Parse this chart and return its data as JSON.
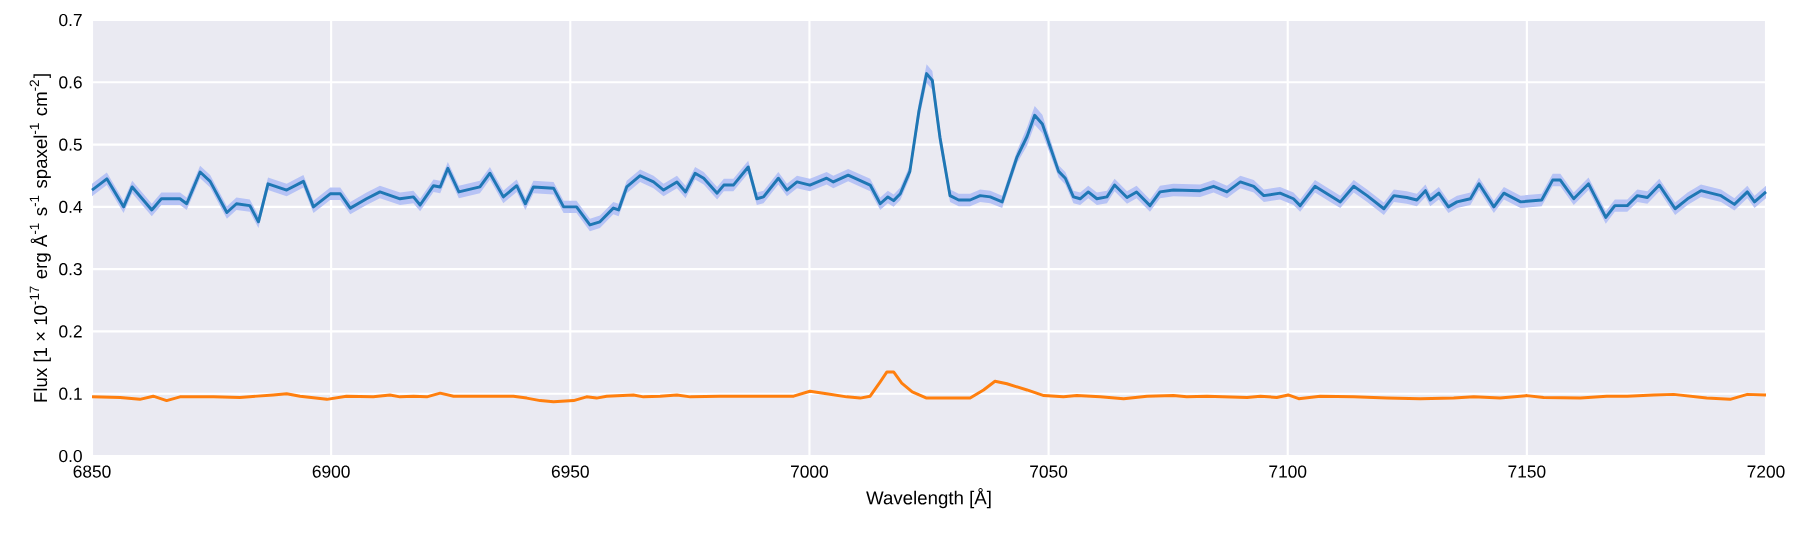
{
  "chart_data": {
    "type": "line",
    "xlabel": "Wavelength [Å]",
    "ylabel": "Flux [1 × 10$^{-17}$ erg Å$^{-1}$ s$^{-1}$ spaxel$^{-1}$ cm$^{-2}$]",
    "xlim": [
      6850,
      7200
    ],
    "ylim": [
      0,
      0.7
    ],
    "xticks": [
      6850,
      6900,
      6950,
      7000,
      7050,
      7100,
      7150,
      7200
    ],
    "yticks": [
      {
        "value": 0,
        "label": "0.0"
      },
      {
        "value": 0.1,
        "label": "0.1"
      },
      {
        "value": 0.2,
        "label": "0.2"
      },
      {
        "value": 0.3,
        "label": "0.3"
      },
      {
        "value": 0.4,
        "label": "0.4"
      },
      {
        "value": 0.5,
        "label": "0.5"
      },
      {
        "value": 0.6,
        "label": "0.6"
      },
      {
        "value": 0.7,
        "label": "0.7"
      }
    ],
    "grid": true,
    "series": [
      {
        "color": "#1f77b4",
        "x": [
          6850,
          6853.1,
          6856.6,
          6858.4,
          6862.5,
          6864.5,
          6868.4,
          6869.8,
          6872.6,
          6874.7,
          6878.2,
          6880.2,
          6883.0,
          6884.8,
          6886.8,
          6890.7,
          6894.2,
          6896.3,
          6899.8,
          6901.9,
          6904.0,
          6907.4,
          6910.2,
          6914.4,
          6917.2,
          6918.6,
          6921.4,
          6922.8,
          6924.4,
          6926.7,
          6931.1,
          6933.2,
          6936.0,
          6938.8,
          6940.6,
          6942.3,
          6946.5,
          6948.6,
          6951.3,
          6954.1,
          6956.2,
          6959.0,
          6960.1,
          6961.8,
          6964.6,
          6967.4,
          6969.5,
          6972.3,
          6974.1,
          6976.1,
          6977.9,
          6980.7,
          6982.1,
          6984.1,
          6987.2,
          6989.0,
          6990.4,
          6993.5,
          6995.3,
          6997.4,
          7000.1,
          7003.6,
          7005.0,
          7008.1,
          7012.7,
          7014.8,
          7016.4,
          7017.6,
          7019.0,
          7021.0,
          7022.9,
          7024.5,
          7025.7,
          7027.3,
          7029.4,
          7031.2,
          7033.6,
          7035.7,
          7037.8,
          7040.3,
          7043.4,
          7045.5,
          7047.1,
          7048.7,
          7052.1,
          7053.5,
          7055.2,
          7056.6,
          7058.3,
          7060.1,
          7062.2,
          7063.8,
          7066.4,
          7068.4,
          7071.2,
          7073.3,
          7076.1,
          7081.7,
          7084.5,
          7087.3,
          7090.1,
          7092.9,
          7095.0,
          7098.4,
          7101.2,
          7102.6,
          7105.7,
          7108.9,
          7111.0,
          7113.8,
          7116.6,
          7120.1,
          7122.2,
          7124.9,
          7127.0,
          7128.8,
          7129.8,
          7131.6,
          7133.6,
          7135.4,
          7138.2,
          7140.0,
          7143.1,
          7145.2,
          7148.7,
          7153.1,
          7155.4,
          7157.0,
          7159.8,
          7162.9,
          7166.5,
          7168.4,
          7171.0,
          7173.1,
          7175.2,
          7177.7,
          7181.0,
          7183.6,
          7186.4,
          7190.6,
          7193.4,
          7196.1,
          7197.6,
          7200
        ],
        "values": [
          0.427,
          0.445,
          0.4,
          0.432,
          0.395,
          0.413,
          0.413,
          0.405,
          0.456,
          0.441,
          0.391,
          0.405,
          0.402,
          0.376,
          0.437,
          0.427,
          0.441,
          0.4,
          0.421,
          0.421,
          0.398,
          0.413,
          0.424,
          0.413,
          0.416,
          0.403,
          0.434,
          0.432,
          0.462,
          0.424,
          0.432,
          0.454,
          0.416,
          0.434,
          0.405,
          0.432,
          0.43,
          0.4,
          0.4,
          0.371,
          0.376,
          0.398,
          0.395,
          0.432,
          0.45,
          0.44,
          0.427,
          0.44,
          0.424,
          0.454,
          0.446,
          0.422,
          0.435,
          0.435,
          0.464,
          0.413,
          0.416,
          0.446,
          0.427,
          0.44,
          0.435,
          0.446,
          0.44,
          0.451,
          0.435,
          0.405,
          0.416,
          0.41,
          0.421,
          0.457,
          0.554,
          0.614,
          0.603,
          0.511,
          0.418,
          0.411,
          0.411,
          0.418,
          0.416,
          0.408,
          0.48,
          0.513,
          0.547,
          0.533,
          0.457,
          0.446,
          0.416,
          0.413,
          0.424,
          0.413,
          0.416,
          0.435,
          0.415,
          0.424,
          0.402,
          0.424,
          0.427,
          0.426,
          0.433,
          0.424,
          0.44,
          0.433,
          0.418,
          0.422,
          0.413,
          0.402,
          0.433,
          0.418,
          0.408,
          0.433,
          0.418,
          0.397,
          0.418,
          0.415,
          0.411,
          0.426,
          0.411,
          0.422,
          0.4,
          0.408,
          0.413,
          0.437,
          0.4,
          0.422,
          0.408,
          0.411,
          0.443,
          0.443,
          0.413,
          0.437,
          0.383,
          0.402,
          0.402,
          0.418,
          0.415,
          0.435,
          0.397,
          0.413,
          0.426,
          0.418,
          0.404,
          0.424,
          0.408,
          0.424
        ],
        "lower": [
          0.417,
          0.435,
          0.39,
          0.422,
          0.385,
          0.403,
          0.403,
          0.395,
          0.446,
          0.431,
          0.381,
          0.395,
          0.392,
          0.366,
          0.427,
          0.417,
          0.431,
          0.39,
          0.411,
          0.411,
          0.388,
          0.403,
          0.414,
          0.403,
          0.406,
          0.393,
          0.424,
          0.422,
          0.452,
          0.414,
          0.422,
          0.444,
          0.406,
          0.424,
          0.395,
          0.422,
          0.42,
          0.39,
          0.39,
          0.361,
          0.366,
          0.388,
          0.385,
          0.422,
          0.44,
          0.43,
          0.417,
          0.43,
          0.414,
          0.444,
          0.436,
          0.412,
          0.425,
          0.425,
          0.454,
          0.403,
          0.406,
          0.436,
          0.417,
          0.43,
          0.425,
          0.436,
          0.43,
          0.441,
          0.425,
          0.395,
          0.406,
          0.4,
          0.411,
          0.447,
          0.539,
          0.599,
          0.588,
          0.496,
          0.408,
          0.401,
          0.401,
          0.408,
          0.406,
          0.398,
          0.47,
          0.498,
          0.532,
          0.518,
          0.447,
          0.436,
          0.406,
          0.403,
          0.414,
          0.403,
          0.406,
          0.425,
          0.405,
          0.414,
          0.392,
          0.414,
          0.417,
          0.416,
          0.423,
          0.414,
          0.43,
          0.423,
          0.408,
          0.412,
          0.403,
          0.392,
          0.423,
          0.408,
          0.398,
          0.423,
          0.408,
          0.387,
          0.408,
          0.405,
          0.401,
          0.416,
          0.401,
          0.412,
          0.39,
          0.398,
          0.403,
          0.427,
          0.39,
          0.412,
          0.398,
          0.401,
          0.433,
          0.433,
          0.403,
          0.427,
          0.373,
          0.392,
          0.392,
          0.408,
          0.405,
          0.425,
          0.387,
          0.403,
          0.416,
          0.408,
          0.394,
          0.414,
          0.398,
          0.414
        ],
        "upper": [
          0.437,
          0.455,
          0.41,
          0.442,
          0.405,
          0.423,
          0.423,
          0.415,
          0.466,
          0.451,
          0.401,
          0.415,
          0.412,
          0.386,
          0.447,
          0.437,
          0.451,
          0.41,
          0.431,
          0.431,
          0.408,
          0.423,
          0.434,
          0.423,
          0.426,
          0.413,
          0.444,
          0.442,
          0.472,
          0.434,
          0.442,
          0.464,
          0.426,
          0.444,
          0.415,
          0.442,
          0.44,
          0.41,
          0.41,
          0.381,
          0.386,
          0.408,
          0.405,
          0.442,
          0.46,
          0.45,
          0.437,
          0.45,
          0.434,
          0.464,
          0.456,
          0.432,
          0.445,
          0.445,
          0.474,
          0.423,
          0.426,
          0.456,
          0.437,
          0.45,
          0.445,
          0.456,
          0.45,
          0.461,
          0.445,
          0.415,
          0.426,
          0.42,
          0.431,
          0.467,
          0.569,
          0.629,
          0.618,
          0.526,
          0.428,
          0.421,
          0.421,
          0.428,
          0.426,
          0.418,
          0.49,
          0.528,
          0.562,
          0.548,
          0.467,
          0.456,
          0.426,
          0.423,
          0.434,
          0.423,
          0.426,
          0.445,
          0.425,
          0.434,
          0.412,
          0.434,
          0.437,
          0.436,
          0.443,
          0.434,
          0.45,
          0.443,
          0.428,
          0.432,
          0.423,
          0.412,
          0.443,
          0.428,
          0.418,
          0.443,
          0.428,
          0.407,
          0.428,
          0.425,
          0.421,
          0.436,
          0.421,
          0.432,
          0.41,
          0.418,
          0.423,
          0.447,
          0.41,
          0.432,
          0.418,
          0.421,
          0.453,
          0.453,
          0.423,
          0.447,
          0.393,
          0.412,
          0.412,
          0.428,
          0.425,
          0.445,
          0.407,
          0.423,
          0.436,
          0.428,
          0.414,
          0.434,
          0.418,
          0.434
        ]
      },
      {
        "color": "#ff7f0e",
        "x": [
          6850,
          6855.9,
          6860.0,
          6862.8,
          6865.6,
          6868.4,
          6875.4,
          6880.9,
          6887.9,
          6890.7,
          6893.5,
          6899.1,
          6903.2,
          6908.8,
          6912.3,
          6914.4,
          6917.2,
          6920.0,
          6922.8,
          6925.6,
          6931.1,
          6938.1,
          6940.9,
          6943.7,
          6946.5,
          6950.7,
          6953.4,
          6955.5,
          6957.6,
          6963.2,
          6965.3,
          6968.8,
          6972.3,
          6975.1,
          6981.3,
          6986.9,
          6992.5,
          6996.7,
          7000.1,
          7003.6,
          7007.8,
          7010.6,
          7012.7,
          7014.8,
          7016.2,
          7017.6,
          7019.3,
          7021.5,
          7024.5,
          7027.3,
          7033.6,
          7036.4,
          7038.8,
          7041.3,
          7045.5,
          7049.0,
          7053.1,
          7055.9,
          7060.8,
          7065.7,
          7070.6,
          7076.1,
          7078.9,
          7083.1,
          7091.5,
          7094.3,
          7097.7,
          7100.1,
          7102.3,
          7106.8,
          7113.8,
          7120.7,
          7127.7,
          7134.7,
          7138.9,
          7144.4,
          7150.0,
          7153.5,
          7161.2,
          7166.7,
          7171.0,
          7176.5,
          7180.7,
          7187.6,
          7192.5,
          7196.1,
          7200
        ],
        "values": [
          0.095,
          0.094,
          0.091,
          0.096,
          0.089,
          0.095,
          0.095,
          0.094,
          0.098,
          0.1,
          0.096,
          0.091,
          0.096,
          0.095,
          0.098,
          0.095,
          0.096,
          0.095,
          0.101,
          0.096,
          0.096,
          0.096,
          0.093,
          0.089,
          0.087,
          0.089,
          0.095,
          0.093,
          0.096,
          0.098,
          0.095,
          0.096,
          0.098,
          0.095,
          0.096,
          0.096,
          0.096,
          0.096,
          0.104,
          0.1,
          0.095,
          0.093,
          0.096,
          0.119,
          0.135,
          0.135,
          0.117,
          0.103,
          0.093,
          0.093,
          0.093,
          0.106,
          0.12,
          0.116,
          0.106,
          0.097,
          0.095,
          0.097,
          0.095,
          0.092,
          0.096,
          0.097,
          0.095,
          0.096,
          0.094,
          0.096,
          0.094,
          0.098,
          0.092,
          0.096,
          0.095,
          0.093,
          0.092,
          0.093,
          0.095,
          0.093,
          0.097,
          0.094,
          0.093,
          0.096,
          0.096,
          0.098,
          0.099,
          0.093,
          0.091,
          0.099,
          0.098
        ]
      }
    ]
  }
}
